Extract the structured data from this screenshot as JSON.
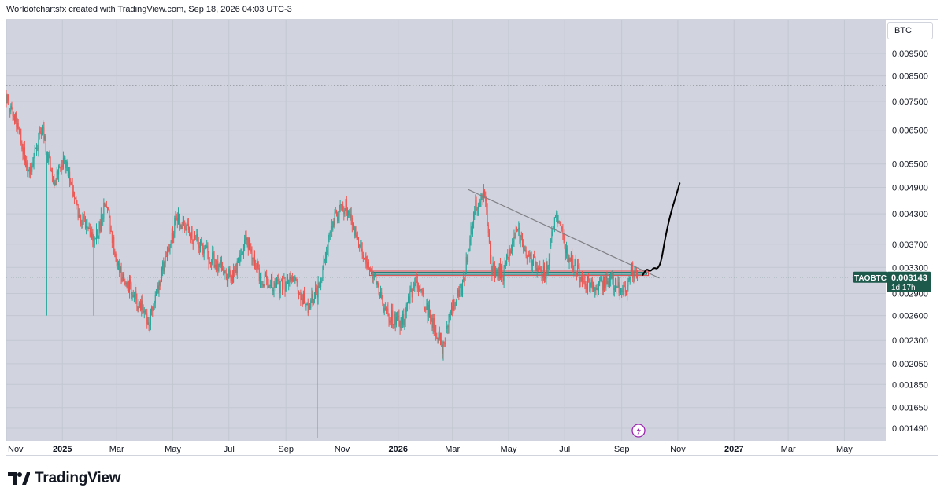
{
  "header": {
    "caption": "Worldofchartsfx created with TradingView.com, Sep 18, 2026 04:03 UTC-3"
  },
  "currency_label": "BTC",
  "brand": {
    "name": "TradingView"
  },
  "colors": {
    "plot_bg": "#d1d4de",
    "bull": "#26a69a",
    "bear": "#ef5350",
    "price_tag": "#1e5a4b",
    "trendline": "#7f7f85",
    "projection": "#000000"
  },
  "price_tag": {
    "symbol": "TAOBTC",
    "price": "0.003143",
    "countdown": "1d 17h",
    "value": 0.003143
  },
  "chart_data": {
    "type": "candlestick",
    "symbol": "TAOBTC",
    "y_scale": "log",
    "ylim": [
      0.00142,
      0.0114
    ],
    "x_range": [
      "2024-11-01",
      "2027-06-15"
    ],
    "grid": true,
    "y_ticks": [
      "0.009500",
      "0.008500",
      "0.007500",
      "0.006500",
      "0.005500",
      "0.004900",
      "0.004300",
      "0.003700",
      "0.003300",
      "0.002900",
      "0.002600",
      "0.002300",
      "0.002050",
      "0.001850",
      "0.001650",
      "0.001490"
    ],
    "x_ticks": [
      {
        "date": "2024-11-01",
        "label": "Nov",
        "bold": false
      },
      {
        "date": "2025-01-01",
        "label": "2025",
        "bold": true
      },
      {
        "date": "2025-03-01",
        "label": "Mar",
        "bold": false
      },
      {
        "date": "2025-05-01",
        "label": "May",
        "bold": false
      },
      {
        "date": "2025-07-01",
        "label": "Jul",
        "bold": false
      },
      {
        "date": "2025-09-01",
        "label": "Sep",
        "bold": false
      },
      {
        "date": "2025-11-01",
        "label": "Nov",
        "bold": false
      },
      {
        "date": "2026-01-01",
        "label": "2026",
        "bold": true
      },
      {
        "date": "2026-03-01",
        "label": "Mar",
        "bold": false
      },
      {
        "date": "2026-05-01",
        "label": "May",
        "bold": false
      },
      {
        "date": "2026-07-01",
        "label": "Jul",
        "bold": false
      },
      {
        "date": "2026-09-01",
        "label": "Sep",
        "bold": false
      },
      {
        "date": "2026-11-01",
        "label": "Nov",
        "bold": false
      },
      {
        "date": "2027-01-01",
        "label": "2027",
        "bold": true
      },
      {
        "date": "2027-03-01",
        "label": "Mar",
        "bold": false
      },
      {
        "date": "2027-05-01",
        "label": "May",
        "bold": false
      }
    ],
    "price_path": [
      [
        "2024-11-01",
        0.0077
      ],
      [
        "2024-11-15",
        0.0065
      ],
      [
        "2024-11-25",
        0.0052
      ],
      [
        "2024-12-10",
        0.0066
      ],
      [
        "2024-12-22",
        0.005
      ],
      [
        "2025-01-05",
        0.0056
      ],
      [
        "2025-01-20",
        0.0042
      ],
      [
        "2025-02-05",
        0.0037
      ],
      [
        "2025-02-18",
        0.0046
      ],
      [
        "2025-03-01",
        0.0033
      ],
      [
        "2025-03-15",
        0.003
      ],
      [
        "2025-03-28",
        0.0027
      ],
      [
        "2025-04-05",
        0.0025
      ],
      [
        "2025-04-20",
        0.0033
      ],
      [
        "2025-05-05",
        0.0042
      ],
      [
        "2025-05-25",
        0.0038
      ],
      [
        "2025-06-15",
        0.0034
      ],
      [
        "2025-07-05",
        0.0031
      ],
      [
        "2025-07-20",
        0.0038
      ],
      [
        "2025-08-05",
        0.0031
      ],
      [
        "2025-08-25",
        0.003
      ],
      [
        "2025-09-10",
        0.0031
      ],
      [
        "2025-09-25",
        0.0027
      ],
      [
        "2025-10-08",
        0.003
      ],
      [
        "2025-10-22",
        0.0042
      ],
      [
        "2025-11-05",
        0.0045
      ],
      [
        "2025-11-20",
        0.0036
      ],
      [
        "2025-12-05",
        0.0032
      ],
      [
        "2025-12-20",
        0.0026
      ],
      [
        "2026-01-05",
        0.0025
      ],
      [
        "2026-01-20",
        0.0031
      ],
      [
        "2026-02-05",
        0.0026
      ],
      [
        "2026-02-18",
        0.0022
      ],
      [
        "2026-03-01",
        0.0027
      ],
      [
        "2026-03-12",
        0.003
      ],
      [
        "2026-03-25",
        0.0044
      ],
      [
        "2026-04-05",
        0.0048
      ],
      [
        "2026-04-12",
        0.0033
      ],
      [
        "2026-04-25",
        0.0032
      ],
      [
        "2026-05-10",
        0.004
      ],
      [
        "2026-05-25",
        0.0034
      ],
      [
        "2026-06-10",
        0.0032
      ],
      [
        "2026-06-22",
        0.0043
      ],
      [
        "2026-07-05",
        0.0035
      ],
      [
        "2026-07-20",
        0.0031
      ],
      [
        "2026-08-05",
        0.003
      ],
      [
        "2026-08-20",
        0.0031
      ],
      [
        "2026-09-05",
        0.0029
      ],
      [
        "2026-09-12",
        0.0033
      ],
      [
        "2026-09-18",
        0.003143
      ]
    ],
    "anomalies": [
      {
        "date": "2025-10-05",
        "low": 0.00142
      },
      {
        "date": "2025-02-04",
        "low": 0.0026
      },
      {
        "date": "2024-12-15",
        "low": 0.0026
      }
    ],
    "annotations": {
      "dotted_level": 0.0081,
      "resistance_zone": {
        "start": "2025-12-01",
        "end": "2026-09-30",
        "low": 0.00317,
        "high": 0.00324
      },
      "trendline": {
        "start": [
          "2026-03-18",
          0.00485
        ],
        "end": [
          "2026-10-12",
          0.00313
        ]
      },
      "projection": [
        [
          "2026-09-24",
          0.00318
        ],
        [
          "2026-09-28",
          0.00328
        ],
        [
          "2026-10-02",
          0.00323
        ],
        [
          "2026-10-06",
          0.0033
        ],
        [
          "2026-10-10",
          0.00327
        ],
        [
          "2026-10-14",
          0.0034
        ],
        [
          "2026-10-18",
          0.0038
        ],
        [
          "2026-10-24",
          0.0043
        ],
        [
          "2026-10-30",
          0.0047
        ],
        [
          "2026-11-03",
          0.005
        ]
      ]
    },
    "timezone": "UTC-3"
  }
}
